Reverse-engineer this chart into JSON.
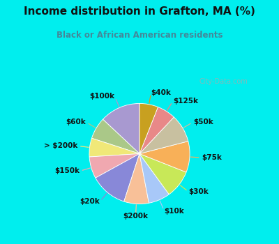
{
  "title": "Income distribution in Grafton, MA (%)",
  "subtitle": "Black or African American residents",
  "bg_outer": "#00eeee",
  "bg_chart": "#e0f0e8",
  "title_color": "#111111",
  "subtitle_color": "#448899",
  "watermark": "City-Data.com",
  "labels": [
    "$100k",
    "$60k",
    "> $200k",
    "$150k",
    "$20k",
    "$200k",
    "$10k",
    "$30k",
    "$75k",
    "$50k",
    "$125k",
    "$40k"
  ],
  "values": [
    13,
    7,
    6,
    7,
    12,
    8,
    7,
    9,
    10,
    9,
    6,
    6
  ],
  "colors": [
    "#a899d0",
    "#aac888",
    "#f0e878",
    "#f0a8b0",
    "#8888d8",
    "#f8c098",
    "#a8c8f8",
    "#c8e858",
    "#f8b058",
    "#c8c0a0",
    "#e88888",
    "#c8a020"
  ],
  "start_angle": 90,
  "label_fontsize": 7.5,
  "title_fontsize": 11,
  "subtitle_fontsize": 8.5
}
